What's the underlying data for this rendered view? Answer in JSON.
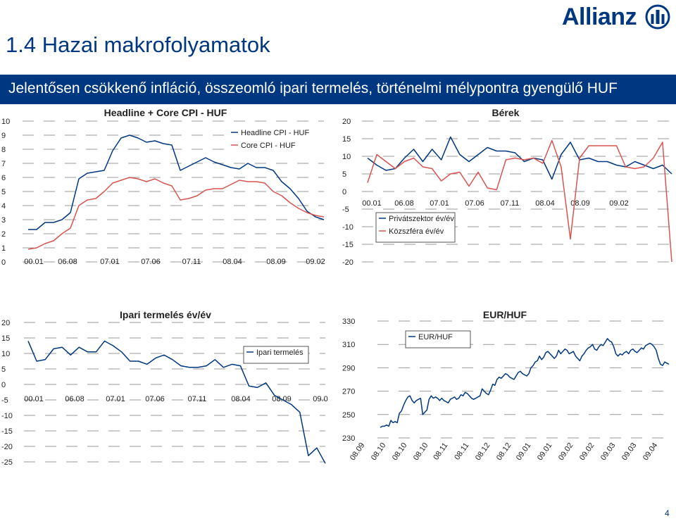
{
  "page": {
    "title": "1.4 Hazai makrofolyamatok",
    "subtitle": "Jelentősen csökkenő infláció, összeomló ipari termelés, történelmi mélypontra gyengülő HUF",
    "page_number": "4"
  },
  "logo": {
    "text": "Allianz"
  },
  "colors": {
    "navy": "#003781",
    "red": "#d9534f",
    "grid": "#9a9a9a",
    "text": "#222222"
  },
  "chart_data": [
    {
      "type": "line",
      "title": "Headline + Core CPI - HUF",
      "ylim": [
        0,
        10
      ],
      "yticks": [
        "0",
        "1",
        "2",
        "3",
        "4",
        "5",
        "6",
        "7",
        "8",
        "9",
        "10"
      ],
      "xtick_labels": [
        "00.01",
        "06.08",
        "07.01",
        "07.06",
        "07.11",
        "08.04",
        "08.09",
        "09.02"
      ],
      "series": [
        {
          "name": "Headline CPI - HUF",
          "color": "#003781",
          "values": [
            2.3,
            2.3,
            2.8,
            2.8,
            3.0,
            3.5,
            5.9,
            6.3,
            6.4,
            6.5,
            7.9,
            8.8,
            9.0,
            8.8,
            8.5,
            8.6,
            8.4,
            8.3,
            6.5,
            6.8,
            7.1,
            7.4,
            7.1,
            6.9,
            6.7,
            6.6,
            7.0,
            6.7,
            6.7,
            6.5,
            5.7,
            5.2,
            4.5,
            3.6,
            3.2,
            3.0
          ]
        },
        {
          "name": "Core CPI - HUF",
          "color": "#d9534f",
          "values": [
            0.9,
            1.0,
            1.3,
            1.5,
            2.0,
            2.4,
            4.0,
            4.4,
            4.5,
            5.0,
            5.6,
            5.8,
            6.0,
            5.9,
            5.7,
            5.9,
            5.6,
            5.4,
            4.4,
            4.5,
            4.7,
            5.1,
            5.2,
            5.2,
            5.5,
            5.8,
            5.7,
            5.7,
            5.6,
            5.0,
            4.7,
            4.2,
            3.8,
            3.5,
            3.3,
            3.2
          ]
        }
      ]
    },
    {
      "type": "line",
      "title": "Bérek",
      "ylim": [
        -20,
        20
      ],
      "yticks": [
        "-20",
        "-15",
        "-10",
        "-5",
        "0",
        "5",
        "10",
        "15",
        "20"
      ],
      "xtick_labels": [
        "00.01",
        "06.08",
        "07.01",
        "07.06",
        "07.11",
        "08.04",
        "08.09",
        "09.02"
      ],
      "series": [
        {
          "name": "Privátszektor év/év",
          "color": "#003781",
          "values": [
            9.5,
            7.5,
            6.0,
            6.5,
            9.5,
            12.0,
            8.5,
            12.0,
            9.0,
            15.5,
            10.5,
            8.5,
            10.5,
            12.5,
            11.5,
            11.5,
            11.0,
            8.5,
            9.5,
            9.0,
            3.5,
            10.5,
            14.0,
            9.0,
            9.5,
            8.5,
            8.5,
            7.5,
            7.0,
            8.5,
            7.5,
            6.5,
            7.5,
            5.0
          ]
        },
        {
          "name": "Közszféra év/év",
          "color": "#d9534f",
          "values": [
            2.5,
            10.5,
            8.5,
            6.5,
            8.5,
            9.5,
            7.0,
            6.5,
            3.0,
            5.0,
            5.5,
            1.5,
            5.5,
            1.0,
            0.5,
            9.0,
            9.5,
            9.0,
            9.5,
            8.0,
            14.5,
            7.0,
            -13.5,
            9.5,
            13.0,
            13.0,
            13.0,
            13.0,
            7.0,
            6.5,
            7.0,
            9.5,
            14.0,
            -20.0
          ]
        }
      ]
    },
    {
      "type": "line",
      "title": "Ipari termelés év/év",
      "ylim": [
        -25,
        20
      ],
      "yticks": [
        "-25",
        "-20",
        "-15",
        "-10",
        "-5",
        "0",
        "5",
        "10",
        "15",
        "20"
      ],
      "xtick_labels": [
        "00.01",
        "06.08",
        "07.01",
        "07.06",
        "07.11",
        "08.04",
        "08.09",
        "09.0"
      ],
      "series": [
        {
          "name": "Ipari termelés",
          "color": "#003781",
          "values": [
            14.0,
            7.5,
            8.0,
            11.5,
            12.0,
            9.5,
            12.0,
            10.5,
            10.5,
            14.0,
            12.5,
            10.5,
            7.5,
            7.5,
            6.5,
            8.5,
            9.5,
            8.0,
            6.0,
            5.5,
            5.5,
            6.0,
            8.0,
            5.5,
            6.5,
            6.0,
            -0.5,
            -1.0,
            0.5,
            -3.5,
            -5.0,
            -6.5,
            -9.0,
            -23.0,
            -20.5,
            -25.5
          ]
        }
      ]
    },
    {
      "type": "line",
      "title": "EUR/HUF",
      "ylim": [
        230,
        330
      ],
      "yticks": [
        "230",
        "250",
        "270",
        "290",
        "310",
        "330"
      ],
      "xtick_labels": [
        "08.09",
        "08.10",
        "08.10",
        "08.10",
        "08.11",
        "08.11",
        "08.12",
        "08.12",
        "09.01",
        "09.01",
        "09.02",
        "09.02",
        "09.03",
        "09.03",
        "09.04"
      ],
      "series": [
        {
          "name": "EUR/HUF",
          "color": "#003781",
          "values": [
            239,
            240,
            240,
            241,
            240,
            245,
            243,
            244,
            243,
            251,
            253,
            258,
            262,
            265,
            266,
            262,
            260,
            262,
            263,
            264,
            250,
            252,
            254,
            263,
            266,
            264,
            265,
            264,
            262,
            264,
            262,
            261,
            260,
            263,
            264,
            265,
            263,
            264,
            267,
            266,
            269,
            268,
            266,
            264,
            263,
            264,
            265,
            266,
            272,
            270,
            268,
            267,
            271,
            276,
            275,
            280,
            282,
            281,
            283,
            285,
            284,
            282,
            281,
            280,
            283,
            286,
            287,
            285,
            284,
            283,
            285,
            290,
            292,
            295,
            296,
            300,
            297,
            299,
            303,
            304,
            302,
            300,
            298,
            300,
            305,
            302,
            304,
            306,
            305,
            302,
            303,
            304,
            300,
            298,
            296,
            300,
            302,
            305,
            307,
            308,
            310,
            306,
            305,
            308,
            310,
            309,
            312,
            315,
            313,
            312,
            308,
            302,
            300,
            302,
            301,
            303,
            304,
            302,
            305,
            306,
            304,
            303,
            305,
            307,
            306,
            309,
            310,
            311,
            310,
            308,
            305,
            298,
            293,
            292,
            295,
            294,
            293
          ]
        }
      ]
    }
  ]
}
